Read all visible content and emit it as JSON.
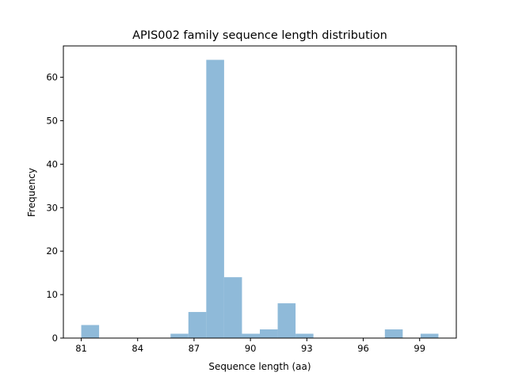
{
  "chart_data": {
    "type": "bar",
    "histogram": true,
    "title": "APIS002 family sequence length distribution",
    "xlabel": "Sequence length (aa)",
    "ylabel": "Frequency",
    "bin_start": 81,
    "bin_width": 0.95,
    "counts": [
      3,
      0,
      0,
      0,
      0,
      1,
      6,
      64,
      14,
      1,
      2,
      8,
      1,
      0,
      0,
      0,
      0,
      2,
      0,
      1
    ],
    "xlim": [
      80.05,
      100.95
    ],
    "ylim": [
      0,
      67.2
    ],
    "xticks": [
      81,
      84,
      87,
      90,
      93,
      96,
      99
    ],
    "yticks": [
      0,
      10,
      20,
      30,
      40,
      50,
      60
    ],
    "grid": false,
    "bar_color": "#8fbad9"
  }
}
